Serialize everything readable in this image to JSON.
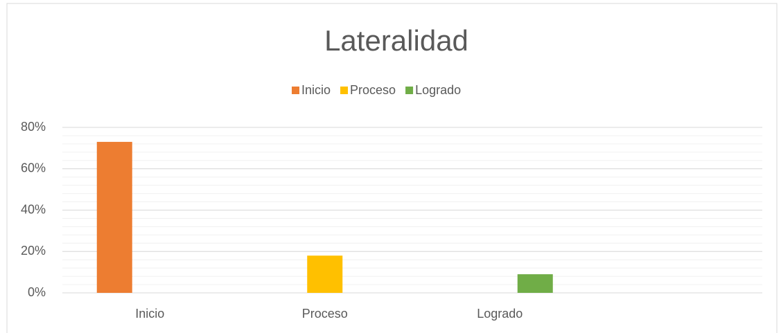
{
  "chart_data": {
    "type": "bar",
    "title": "Lateralidad",
    "categories": [
      "Inicio",
      "Proceso",
      "Logrado",
      null
    ],
    "series": [
      {
        "name": "Inicio",
        "color": "#ed7d31",
        "values": [
          73,
          null,
          null,
          null
        ]
      },
      {
        "name": "Proceso",
        "color": "#ffc000",
        "values": [
          null,
          18,
          null,
          null
        ]
      },
      {
        "name": "Logrado",
        "color": "#70ad47",
        "values": [
          null,
          null,
          9,
          null
        ]
      }
    ],
    "ylim": [
      0,
      80
    ],
    "yticks": [
      {
        "value": 0,
        "label": "0%"
      },
      {
        "value": 20,
        "label": "20%"
      },
      {
        "value": 40,
        "label": "40%"
      },
      {
        "value": 60,
        "label": "60%"
      },
      {
        "value": 80,
        "label": "80%"
      }
    ],
    "grid": true,
    "minor_grid_step": 4,
    "legend": "top"
  }
}
